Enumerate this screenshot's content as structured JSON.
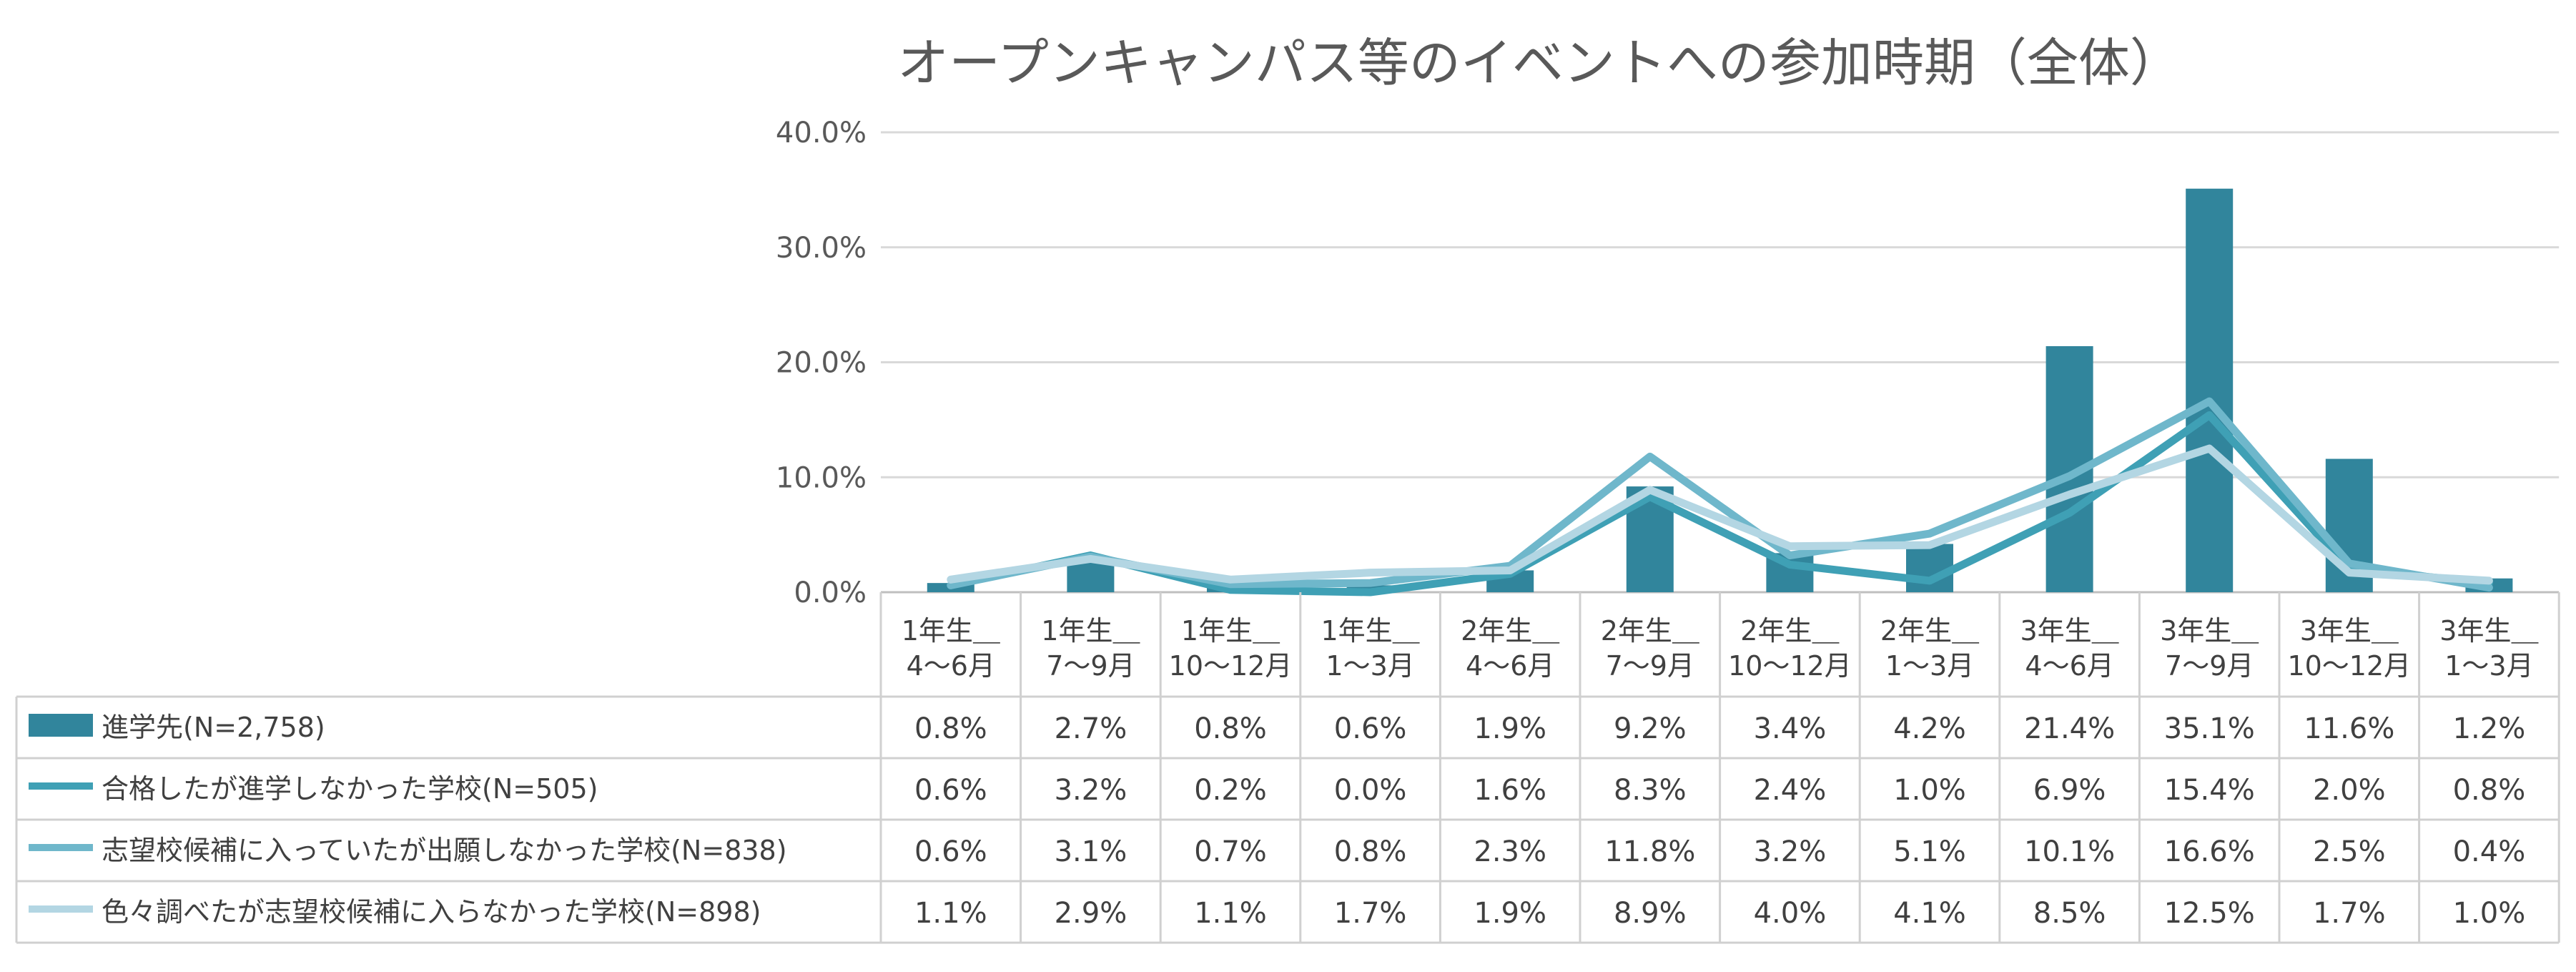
{
  "chart_data": {
    "type": "bar",
    "title": "オープンキャンパス等のイベントへの参加時期（全体）",
    "ylim": [
      0,
      40
    ],
    "yticks": [
      "0.0%",
      "10.0%",
      "20.0%",
      "30.0%",
      "40.0%"
    ],
    "grid": true,
    "legend_placement": "data-table-left",
    "categories": [
      [
        "1年生＿",
        "4〜6月"
      ],
      [
        "1年生＿",
        "7〜9月"
      ],
      [
        "1年生＿",
        "10〜12月"
      ],
      [
        "1年生＿",
        "1〜3月"
      ],
      [
        "2年生＿",
        "4〜6月"
      ],
      [
        "2年生＿",
        "7〜9月"
      ],
      [
        "2年生＿",
        "10〜12月"
      ],
      [
        "2年生＿",
        "1〜3月"
      ],
      [
        "3年生＿",
        "4〜6月"
      ],
      [
        "3年生＿",
        "7〜9月"
      ],
      [
        "3年生＿",
        "10〜12月"
      ],
      [
        "3年生＿",
        "1〜3月"
      ]
    ],
    "series": [
      {
        "name": "進学先(N=2,758)",
        "type": "bar",
        "color": "#31859C",
        "values": [
          0.8,
          2.7,
          0.8,
          0.6,
          1.9,
          9.2,
          3.4,
          4.2,
          21.4,
          35.1,
          11.6,
          1.2
        ],
        "labels": [
          "0.8%",
          "2.7%",
          "0.8%",
          "0.6%",
          "1.9%",
          "9.2%",
          "3.4%",
          "4.2%",
          "21.4%",
          "35.1%",
          "11.6%",
          "1.2%"
        ]
      },
      {
        "name": "合格したが進学しなかった学校(N=505)",
        "type": "line",
        "color": "#3FA0B5",
        "values": [
          0.6,
          3.2,
          0.2,
          0.0,
          1.6,
          8.3,
          2.4,
          1.0,
          6.9,
          15.4,
          2.0,
          0.8
        ],
        "labels": [
          "0.6%",
          "3.2%",
          "0.2%",
          "0.0%",
          "1.6%",
          "8.3%",
          "2.4%",
          "1.0%",
          "6.9%",
          "15.4%",
          "2.0%",
          "0.8%"
        ]
      },
      {
        "name": "志望校候補に入っていたが出願しなかった学校(N=838)",
        "type": "line",
        "color": "#6FB7CB",
        "values": [
          0.6,
          3.1,
          0.7,
          0.8,
          2.3,
          11.8,
          3.2,
          5.1,
          10.1,
          16.6,
          2.5,
          0.4
        ],
        "labels": [
          "0.6%",
          "3.1%",
          "0.7%",
          "0.8%",
          "2.3%",
          "11.8%",
          "3.2%",
          "5.1%",
          "10.1%",
          "16.6%",
          "2.5%",
          "0.4%"
        ]
      },
      {
        "name": "色々調べたが志望校候補に入らなかった学校(N=898)",
        "type": "line",
        "color": "#B3D6E3",
        "values": [
          1.1,
          2.9,
          1.1,
          1.7,
          1.9,
          8.9,
          4.0,
          4.1,
          8.5,
          12.5,
          1.7,
          1.0
        ],
        "labels": [
          "1.1%",
          "2.9%",
          "1.1%",
          "1.7%",
          "1.9%",
          "8.9%",
          "4.0%",
          "4.1%",
          "8.5%",
          "12.5%",
          "1.7%",
          "1.0%"
        ]
      }
    ]
  }
}
